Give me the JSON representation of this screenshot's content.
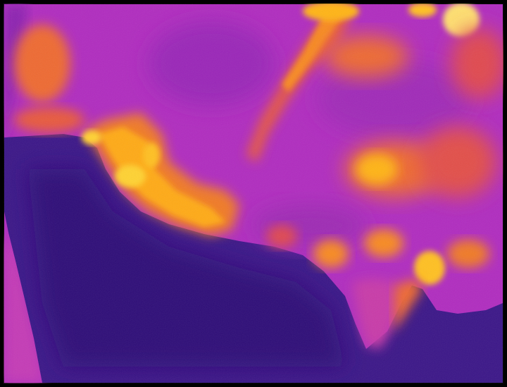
{
  "image": {
    "subject": "thermal-camera-frame",
    "palette": "inferno",
    "colors": {
      "border": "#000000",
      "cold": "#3a1486",
      "cool": "#5a1aa0",
      "mid": "#b52bbd",
      "warm_magenta": "#d63aa8",
      "warm": "#ee6a30",
      "hot": "#ff9a12",
      "hotter": "#ffc81a",
      "hottest": "#fff2a0"
    }
  }
}
